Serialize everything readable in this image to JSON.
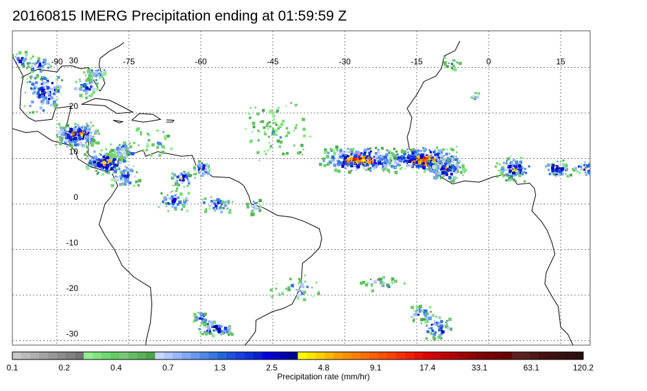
{
  "title": "20160815 IMERG Precipitation ending at 01:59:59 Z",
  "lon_ticks": [
    "-90",
    "-75",
    "-60",
    "-45",
    "-30",
    "-15",
    "0",
    "15"
  ],
  "lat_ticks": [
    "30",
    "20",
    "10",
    "0",
    "-10",
    "-20",
    "-30"
  ],
  "colorbar": {
    "label": "Precipitation rate (mm/hr)",
    "tick_labels": [
      "0.1",
      "0.2",
      "0.4",
      "0.7",
      "1.3",
      "2.5",
      "4.8",
      "9.1",
      "17.4",
      "33.1",
      "63.1",
      "120.2"
    ],
    "colors": [
      "#c8c8c8",
      "#bcbcbc",
      "#b0b0b0",
      "#a4a4a4",
      "#989898",
      "#8c8c8c",
      "#808080",
      "#747474",
      "#90f090",
      "#80e480",
      "#70d870",
      "#60cc60",
      "#78c878",
      "#68bc68",
      "#5ab05a",
      "#4ca44c",
      "#c8d8ff",
      "#b0c8ff",
      "#98b8ff",
      "#80a8f8",
      "#6898f0",
      "#5088e8",
      "#3878e0",
      "#2068d8",
      "#2050e0",
      "#1840e0",
      "#1030d8",
      "#0820d0",
      "#0000e0",
      "#0000c8",
      "#0000b0",
      "#000098",
      "#ffff00",
      "#ffe800",
      "#ffd000",
      "#ffb800",
      "#ffa000",
      "#ff9000",
      "#ff8000",
      "#ff7000",
      "#ff6000",
      "#ff5000",
      "#ff4000",
      "#f83000",
      "#f02000",
      "#e81000",
      "#e00000",
      "#d00000",
      "#c00000",
      "#b00000",
      "#a00000",
      "#900000",
      "#800000",
      "#780000",
      "#700000",
      "#680000",
      "#602020",
      "#582020",
      "#501818",
      "#481010",
      "#401010",
      "#381010",
      "#301010",
      "#281010"
    ]
  }
}
